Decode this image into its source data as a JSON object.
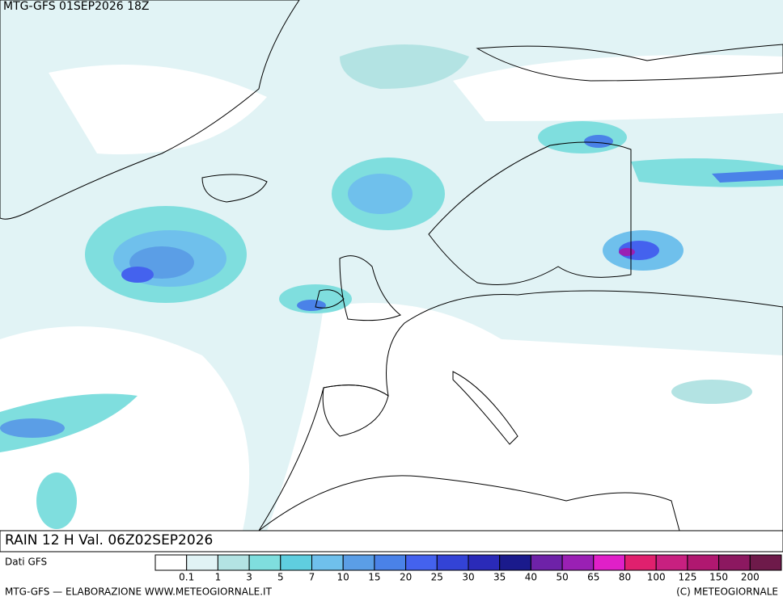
{
  "header": {
    "title": "MTG-GFS 01SEP2026 18Z"
  },
  "map": {
    "caption": "RAIN 12 H Val. 06Z02SEP2026"
  },
  "legend": {
    "source": "Dati GFS",
    "colors": [
      "#ffffff",
      "#e1f3f5",
      "#b3e3e3",
      "#7fdede",
      "#5fcedf",
      "#6fc0ec",
      "#5b9ee6",
      "#4a82e8",
      "#4462ee",
      "#3343d6",
      "#2a2ab8",
      "#1a1a8c",
      "#6e22a8",
      "#9a20b4",
      "#e020c8",
      "#e0206e",
      "#c82080",
      "#b01870",
      "#8c1860",
      "#6e1a4a"
    ],
    "labels": [
      "0.1",
      "1",
      "3",
      "5",
      "7",
      "10",
      "15",
      "20",
      "25",
      "30",
      "35",
      "40",
      "50",
      "65",
      "80",
      "100",
      "125",
      "150",
      "200"
    ]
  },
  "footer": {
    "left": "MTG-GFS — ELABORAZIONE WWW.METEOGIORNALE.IT",
    "right": "(C) METEOGIORNALE"
  }
}
